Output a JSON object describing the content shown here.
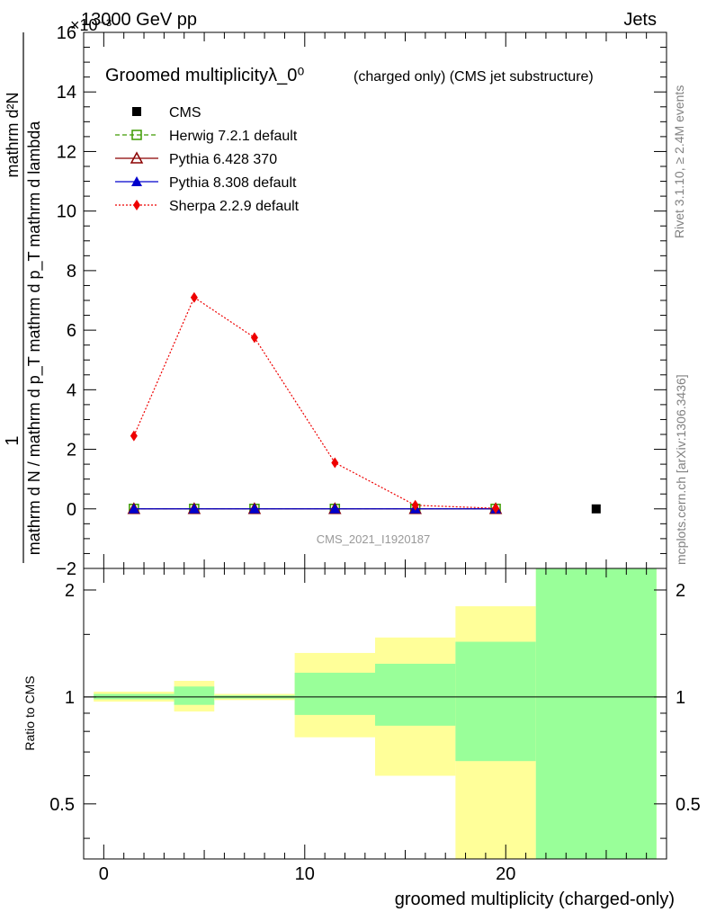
{
  "header": {
    "energy": "13000 GeV pp",
    "process": "Jets",
    "exponent": "×10⁻³"
  },
  "side_labels": {
    "rivet": "Rivet 3.1.10, ≥ 2.4M events",
    "mcplots": "mcplots.cern.ch [arXiv:1306.3436]"
  },
  "watermark": "CMS_2021_I1920187",
  "colors": {
    "cms": "#000000",
    "herwig": "#3d9b00",
    "pythia6": "#8b0000",
    "pythia8": "#0000cc",
    "sherpa": "#ee0000",
    "band_2sigma": "#ffff99",
    "band_1sigma": "#99ff99"
  },
  "chart_data": [
    {
      "type": "line",
      "title": "Groomed multiplicityλ_0⁰",
      "title_sub": "(charged only) (CMS jet substructure)",
      "xlabel": "groomed multiplicity (charged-only)",
      "ylabel_numerator": "1",
      "ylabel_denominator": "mathrm d N / mathrm d p_T mathrm d p_T mathrm d lambda",
      "ylabel_right_top": "mathrm d²N",
      "ylim": [
        -2,
        16
      ],
      "xlim": [
        -1,
        28
      ],
      "y_scale_factor": 0.001,
      "y_ticks": [
        -2,
        0,
        2,
        4,
        6,
        8,
        10,
        12,
        14,
        16
      ],
      "x_ticks": [
        0,
        10,
        20
      ],
      "legend_position": "top-left",
      "series": [
        {
          "name": "CMS",
          "key": "cms",
          "marker": "square",
          "line": "none",
          "x": [
            24.5
          ],
          "y": [
            0.0
          ]
        },
        {
          "name": "Herwig 7.2.1 default",
          "key": "herwig",
          "marker": "open-square",
          "line": "dashed",
          "x": [
            1.5,
            4.5,
            7.5,
            11.5,
            15.5,
            19.5
          ],
          "y": [
            0.0,
            0.0,
            0.0,
            0.0,
            0.0,
            0.0
          ]
        },
        {
          "name": "Pythia 6.428 370",
          "key": "pythia6",
          "marker": "open-triangle",
          "line": "solid",
          "x": [
            1.5,
            4.5,
            7.5,
            11.5,
            15.5,
            19.5
          ],
          "y": [
            0.0,
            0.0,
            0.0,
            0.0,
            0.0,
            0.0
          ]
        },
        {
          "name": "Pythia 8.308 default",
          "key": "pythia8",
          "marker": "triangle",
          "line": "solid",
          "x": [
            1.5,
            4.5,
            7.5,
            11.5,
            15.5,
            19.5
          ],
          "y": [
            0.0,
            0.0,
            0.0,
            0.0,
            0.0,
            0.0
          ]
        },
        {
          "name": "Sherpa 2.2.9 default",
          "key": "sherpa",
          "marker": "diamond",
          "line": "dotted",
          "x": [
            1.5,
            4.5,
            7.5,
            11.5,
            15.5,
            19.5
          ],
          "y": [
            2.45,
            7.1,
            5.75,
            1.55,
            0.12,
            0.02
          ]
        }
      ]
    },
    {
      "type": "area",
      "ylabel": "Ratio to CMS",
      "ylim": [
        0.35,
        2.3
      ],
      "y_ticks": [
        0.5,
        1,
        2
      ],
      "x_ticks": [
        0,
        10,
        20
      ],
      "reference_line": 1,
      "bins": [
        {
          "x0": -0.5,
          "x1": 3.5,
          "y2_lo": 0.97,
          "y2_hi": 1.035,
          "y1_lo": 0.985,
          "y1_hi": 1.02
        },
        {
          "x0": 3.5,
          "x1": 5.5,
          "y2_lo": 0.91,
          "y2_hi": 1.11,
          "y1_lo": 0.95,
          "y1_hi": 1.07
        },
        {
          "x0": 5.5,
          "x1": 9.5,
          "y2_lo": 0.98,
          "y2_hi": 1.02,
          "y1_lo": 0.99,
          "y1_hi": 1.01
        },
        {
          "x0": 9.5,
          "x1": 13.5,
          "y2_lo": 0.77,
          "y2_hi": 1.33,
          "y1_lo": 0.89,
          "y1_hi": 1.17
        },
        {
          "x0": 13.5,
          "x1": 17.5,
          "y2_lo": 0.6,
          "y2_hi": 1.47,
          "y1_lo": 0.83,
          "y1_hi": 1.24
        },
        {
          "x0": 17.5,
          "x1": 21.5,
          "y2_lo": 0.35,
          "y2_hi": 1.8,
          "y1_lo": 0.66,
          "y1_hi": 1.43
        },
        {
          "x0": 21.5,
          "x1": 27.5,
          "y2_lo": 0.35,
          "y2_hi": 2.3,
          "y1_lo": 0.35,
          "y1_hi": 2.3
        }
      ]
    }
  ]
}
